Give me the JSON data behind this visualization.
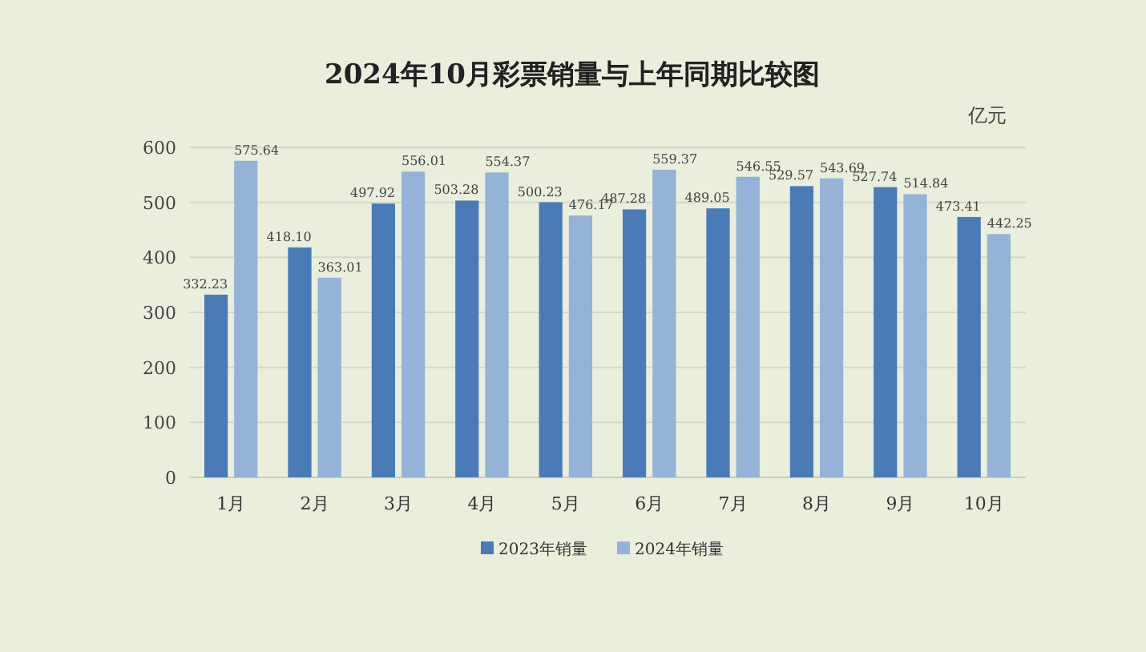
{
  "chart_data": {
    "type": "bar",
    "title": "2024年10月彩票销量与上年同期比较图",
    "ylabel": "亿元",
    "categories": [
      "1月",
      "2月",
      "3月",
      "4月",
      "5月",
      "6月",
      "7月",
      "8月",
      "9月",
      "10月"
    ],
    "series": [
      {
        "name": "2023年销量",
        "color": "#4a7bb7",
        "values": [
          332.23,
          418.1,
          497.92,
          503.28,
          500.23,
          487.28,
          489.05,
          529.57,
          527.74,
          473.41
        ],
        "value_labels": [
          "332.23",
          "418.10",
          "497.92",
          "503.28",
          "500.23",
          "487.28",
          "489.05",
          "529.57",
          "527.74",
          "473.41"
        ]
      },
      {
        "name": "2024年销量",
        "color": "#95b3d7",
        "values": [
          575.64,
          363.01,
          556.01,
          554.37,
          476.17,
          559.37,
          546.55,
          543.69,
          514.84,
          442.25
        ],
        "value_labels": [
          "575.64",
          "363.01",
          "556.01",
          "554.37",
          "476.17",
          "559.37",
          "546.55",
          "543.69",
          "514.84",
          "442.25"
        ]
      }
    ],
    "ylim": [
      0,
      600
    ],
    "yticks": [
      0,
      100,
      200,
      300,
      400,
      500,
      600
    ],
    "grid": "y",
    "legend": "bottom"
  }
}
